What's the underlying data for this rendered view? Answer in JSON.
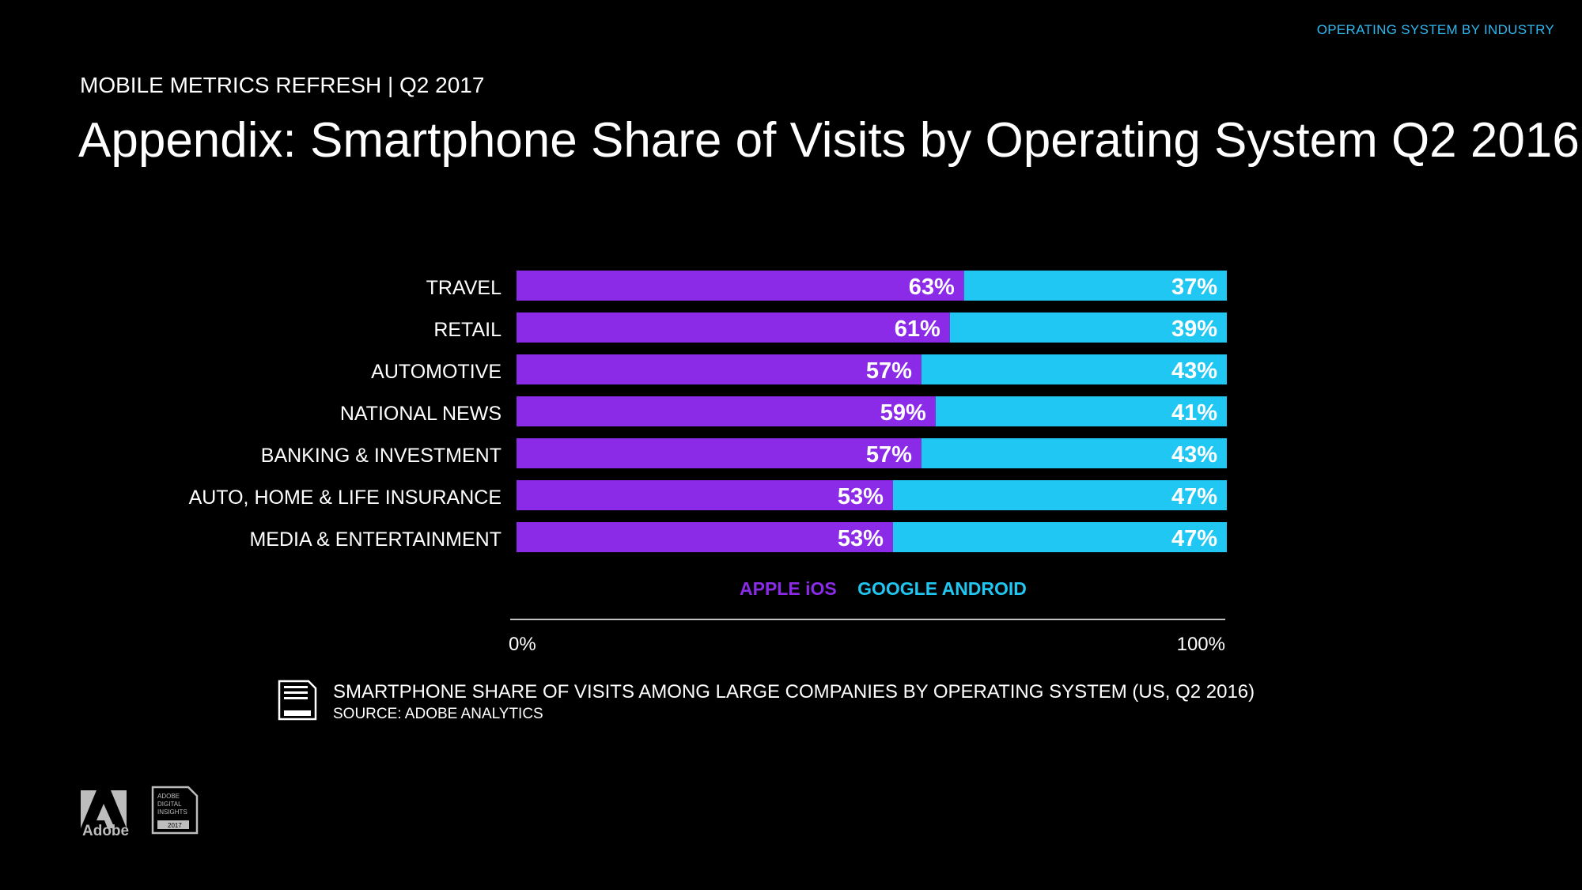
{
  "header": {
    "section_tag": "OPERATING SYSTEM BY INDUSTRY",
    "eyebrow": "MOBILE METRICS REFRESH | Q2 2017",
    "title": "Appendix: Smartphone Share of Visits by Operating System Q2 2016"
  },
  "colors": {
    "ios": "#8b2be8",
    "android": "#1fc7f2",
    "accent": "#2fb8f0",
    "background": "#000000"
  },
  "chart_data": {
    "type": "bar",
    "stacked": true,
    "orientation": "horizontal",
    "categories": [
      "TRAVEL",
      "RETAIL",
      "AUTOMOTIVE",
      "NATIONAL NEWS",
      "BANKING & INVESTMENT",
      "AUTO, HOME & LIFE INSURANCE",
      "MEDIA & ENTERTAINMENT"
    ],
    "series": [
      {
        "name": "APPLE iOS",
        "values": [
          63,
          61,
          57,
          59,
          57,
          53,
          53
        ]
      },
      {
        "name": "GOOGLE ANDROID",
        "values": [
          37,
          39,
          43,
          41,
          43,
          47,
          47
        ]
      }
    ],
    "value_suffix": "%",
    "xlim": [
      0,
      100
    ],
    "x_tick_labels": [
      "0%",
      "100%"
    ],
    "legend_position": "below-bars"
  },
  "legend": {
    "ios_label": "APPLE iOS",
    "android_label": "GOOGLE ANDROID"
  },
  "caption": {
    "title": "SMARTPHONE SHARE OF VISITS AMONG LARGE COMPANIES BY OPERATING SYSTEM (US, Q2 2016)",
    "source": "SOURCE: ADOBE ANALYTICS"
  },
  "branding": {
    "adobe_logo_text": "Adobe",
    "badge_lines": [
      "ADOBE",
      "DIGITAL",
      "INSIGHTS",
      "2017"
    ]
  }
}
